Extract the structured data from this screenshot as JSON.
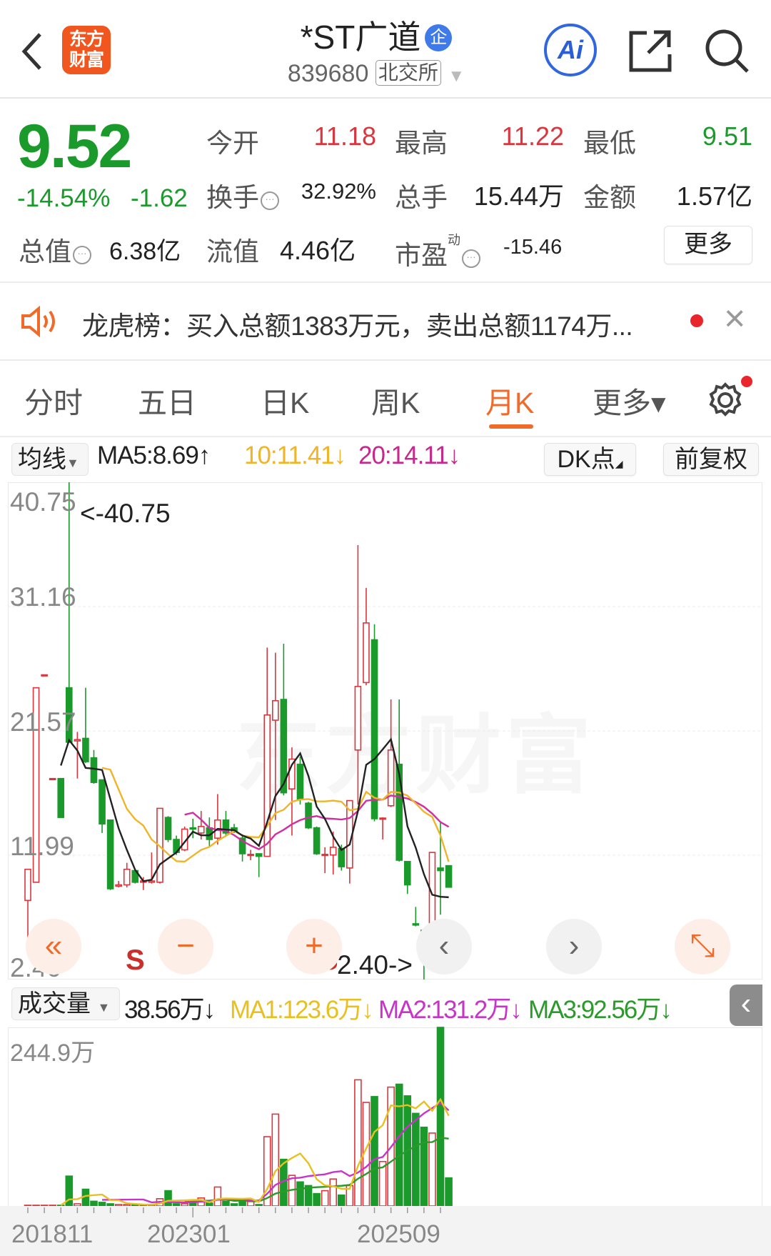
{
  "header": {
    "logo_text": "东方财富",
    "title": "*ST广道",
    "badge": "企",
    "code": "839680",
    "exchange": "北交所",
    "ai_label": "Ai"
  },
  "quote": {
    "price": "9.52",
    "change_pct": "-14.54%",
    "change": "-1.62",
    "open_label": "今开",
    "open": "11.18",
    "high_label": "最高",
    "high": "11.22",
    "low_label": "最低",
    "low": "9.51",
    "turnover_label": "换手",
    "turnover": "32.92%",
    "volume_label": "总手",
    "volume": "15.44万",
    "amount_label": "金额",
    "amount": "1.57亿",
    "mktcap_label": "总值",
    "mktcap": "6.38亿",
    "float_label": "流值",
    "float": "4.46亿",
    "pe_label": "市盈",
    "pe_sup": "动",
    "pe": "-15.46",
    "more_label": "更多",
    "info_glyph": "···"
  },
  "notice": {
    "text": "龙虎榜：买入总额1383万元，卖出总额1174万...",
    "close": "×"
  },
  "tabs": [
    {
      "label": "分时"
    },
    {
      "label": "五日"
    },
    {
      "label": "日K"
    },
    {
      "label": "周K"
    },
    {
      "label": "月K",
      "active": true
    },
    {
      "label": "更多▾"
    }
  ],
  "ma_bar": {
    "selector": "均线",
    "ma5": "MA5:8.69↑",
    "ma10": "10:11.41↓",
    "ma20": "20:14.11↓",
    "dk": "DK点",
    "adjust": "前复权"
  },
  "vol_bar": {
    "selector": "成交量",
    "vol": "38.56万↓",
    "ma1": "MA1:123.6万↓",
    "ma2": "MA2:131.2万↓",
    "ma3": "MA3:92.56万↓",
    "collapse": "‹"
  },
  "controls": {
    "first": "«",
    "zoom_out": "−",
    "zoom_in": "+",
    "prev": "‹",
    "next": "›",
    "expand": "⤡",
    "signal": "S"
  },
  "watermark": "东方财富",
  "colors": {
    "up": "#d9363e",
    "down": "#1a9a2a",
    "ma5": "#222222",
    "ma10": "#f0b429",
    "ma20": "#d12fa0",
    "vol_ma3": "#2a9a2a",
    "accent": "#f06a2a"
  },
  "chart_data": {
    "type": "candlestick",
    "period": "monthly",
    "y_ticks": [
      "40.75",
      "31.16",
      "21.57",
      "11.99",
      "2.40"
    ],
    "ylim": [
      2.4,
      40.75
    ],
    "max_label": "<-40.75",
    "min_label": "2.40->",
    "vol_max_label": "244.9万",
    "vol_max": 244.9,
    "x_ticks": [
      "201811",
      "202301",
      "202509"
    ],
    "candles_ohlc_vol": [
      [
        8.5,
        10.9,
        5.5,
        10.9,
        1
      ],
      [
        9.9,
        24.9,
        9.9,
        24.9,
        1
      ],
      [
        25.9,
        25.9,
        25.9,
        25.9,
        1
      ],
      [
        17.9,
        17.9,
        17.9,
        17.9,
        1
      ],
      [
        17.9,
        17.9,
        14.9,
        14.9,
        1
      ],
      [
        24.9,
        40.75,
        20.7,
        20.7,
        41
      ],
      [
        20.8,
        21.5,
        17.9,
        20.9,
        3
      ],
      [
        21.0,
        24.9,
        19.1,
        19.2,
        23
      ],
      [
        19.5,
        20.1,
        17.5,
        17.6,
        6.5
      ],
      [
        17.8,
        17.8,
        13.7,
        14.4,
        5
      ],
      [
        14.7,
        14.7,
        9.3,
        9.4,
        3
      ],
      [
        9.6,
        10.0,
        9.5,
        9.7,
        2
      ],
      [
        9.7,
        11.4,
        9.5,
        10.9,
        2
      ],
      [
        10.8,
        10.9,
        9.8,
        9.9,
        2
      ],
      [
        9.9,
        10.3,
        9.3,
        10.0,
        1
      ],
      [
        9.9,
        12.2,
        9.8,
        10.0,
        2
      ],
      [
        9.9,
        15.6,
        9.8,
        15.6,
        10
      ],
      [
        14.9,
        15.0,
        13.0,
        13.2,
        21
      ],
      [
        13.2,
        13.5,
        12.0,
        12.2,
        3
      ],
      [
        12.4,
        14.2,
        12.3,
        14.0,
        3
      ],
      [
        14.1,
        14.8,
        13.3,
        14.0,
        4
      ],
      [
        13.7,
        15.4,
        13.2,
        14.2,
        11
      ],
      [
        14.1,
        14.9,
        12.6,
        13.2,
        4
      ],
      [
        13.3,
        16.7,
        12.8,
        14.7,
        26
      ],
      [
        14.7,
        15.4,
        13.5,
        13.7,
        6.5
      ],
      [
        14.1,
        14.4,
        13.7,
        13.8,
        3
      ],
      [
        13.3,
        13.6,
        11.5,
        12.1,
        10
      ],
      [
        12.0,
        12.4,
        11.6,
        12.05,
        6
      ],
      [
        12.1,
        12.1,
        10.3,
        11.9,
        2
      ],
      [
        11.9,
        28.0,
        11.9,
        22.8,
        95
      ],
      [
        22.4,
        27.6,
        14.7,
        23.9,
        126
      ],
      [
        24.0,
        28.3,
        16.6,
        16.8,
        64
      ],
      [
        17.1,
        20.3,
        13.5,
        19.4,
        42
      ],
      [
        19.0,
        19.6,
        15.9,
        16.3,
        33
      ],
      [
        16.0,
        16.1,
        14.0,
        14.1,
        28
      ],
      [
        14.1,
        14.2,
        12.0,
        12.1,
        17
      ],
      [
        12.0,
        12.6,
        10.6,
        12.05,
        21
      ],
      [
        12.0,
        13.8,
        10.5,
        12.6,
        37
      ],
      [
        12.5,
        12.8,
        10.8,
        11.1,
        15
      ],
      [
        11.0,
        16.2,
        9.8,
        16.2,
        28
      ],
      [
        20.1,
        35.9,
        15.9,
        25.0,
        173
      ],
      [
        25.3,
        32.6,
        25.1,
        29.9,
        142
      ],
      [
        28.6,
        29.8,
        14.6,
        14.8,
        150
      ],
      [
        14.8,
        14.9,
        13.2,
        14.85,
        61
      ],
      [
        15.8,
        24.0,
        15.7,
        20.1,
        163
      ],
      [
        19.0,
        24.0,
        11.5,
        11.6,
        167
      ],
      [
        11.5,
        11.5,
        9.0,
        9.7,
        151
      ],
      [
        6.7,
        8.0,
        6.5,
        6.6,
        127
      ],
      [
        6.2,
        6.3,
        2.4,
        4.6,
        108
      ],
      [
        4.2,
        12.2,
        4.2,
        12.2,
        100
      ],
      [
        11.0,
        14.6,
        7.4,
        10.8,
        244.9
      ],
      [
        11.18,
        11.22,
        9.51,
        9.52,
        38.56
      ]
    ]
  }
}
